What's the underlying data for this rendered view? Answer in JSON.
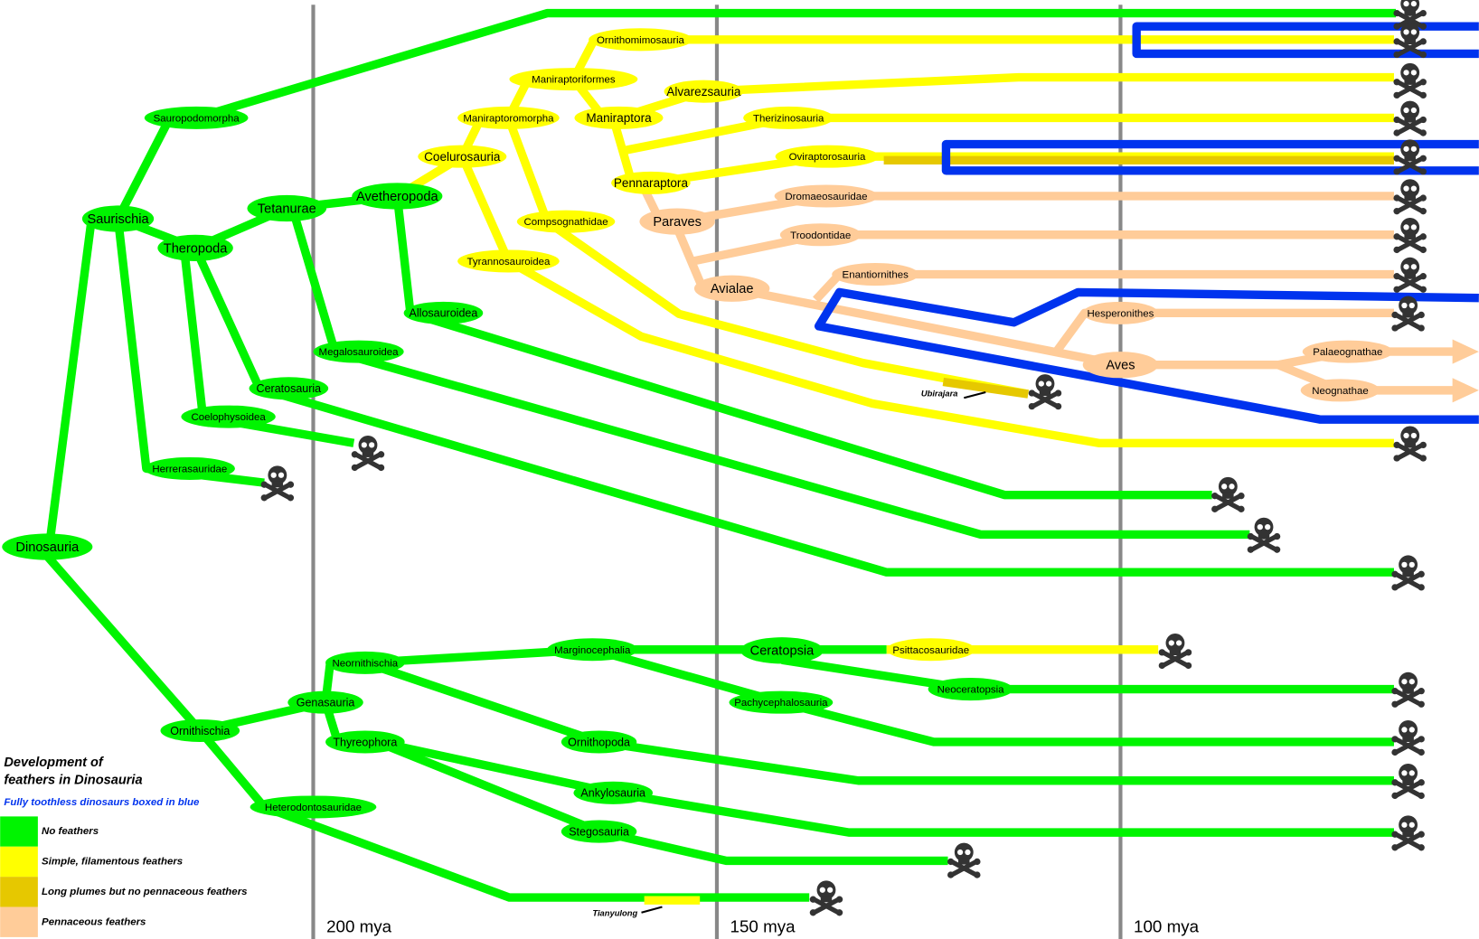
{
  "nodes": [
    {
      "label": "Dinosauria"
    },
    {
      "label": "Saurischia"
    },
    {
      "label": "Sauropodomorpha"
    },
    {
      "label": "Theropoda"
    },
    {
      "label": "Tetanurae"
    },
    {
      "label": "Avetheropoda"
    },
    {
      "label": "Coelurosauria"
    },
    {
      "label": "Maniraptoromorpha"
    },
    {
      "label": "Maniraptoriformes"
    },
    {
      "label": "Ornithomimosauria"
    },
    {
      "label": "Maniraptora"
    },
    {
      "label": "Alvarezsauria"
    },
    {
      "label": "Therizinosauria"
    },
    {
      "label": "Oviraptorosauria"
    },
    {
      "label": "Pennaraptora"
    },
    {
      "label": "Paraves"
    },
    {
      "label": "Dromaeosauridae"
    },
    {
      "label": "Troodontidae"
    },
    {
      "label": "Avialae"
    },
    {
      "label": "Enantiornithes"
    },
    {
      "label": "Hesperonithes"
    },
    {
      "label": "Aves"
    },
    {
      "label": "Palaeognathae"
    },
    {
      "label": "Neognathae"
    },
    {
      "label": "Compsognathidae"
    },
    {
      "label": "Tyrannosauroidea"
    },
    {
      "label": "Allosauroidea"
    },
    {
      "label": "Megalosauroidea"
    },
    {
      "label": "Ceratosauria"
    },
    {
      "label": "Coelophysoidea"
    },
    {
      "label": "Herrerasauridae"
    },
    {
      "label": "Ornithischia"
    },
    {
      "label": "Genasauria"
    },
    {
      "label": "Neornithischia"
    },
    {
      "label": "Marginocephalia"
    },
    {
      "label": "Ceratopsia"
    },
    {
      "label": "Psittacosauridae"
    },
    {
      "label": "Neoceratopsia"
    },
    {
      "label": "Pachycephalosauria"
    },
    {
      "label": "Thyreophora"
    },
    {
      "label": "Ornithopoda"
    },
    {
      "label": "Ankylosauria"
    },
    {
      "label": "Stegosauria"
    },
    {
      "label": "Heterodontosauridae"
    }
  ],
  "fossils": [
    {
      "label": "Ubirajara"
    },
    {
      "label": "Tianyulong"
    }
  ],
  "timeline": [
    {
      "label": "200 mya"
    },
    {
      "label": "150 mya"
    },
    {
      "label": "100 mya"
    }
  ],
  "legend": {
    "title_lines": [
      "Development of",
      "feathers in Dinosauria"
    ],
    "note": "Fully toothless dinosaurs boxed in blue",
    "entries": [
      {
        "label": "No feathers"
      },
      {
        "label": "Simple, filamentous feathers"
      },
      {
        "label": "Long plumes but no pennaceous feathers"
      },
      {
        "label": "Pennaceous feathers"
      }
    ]
  }
}
